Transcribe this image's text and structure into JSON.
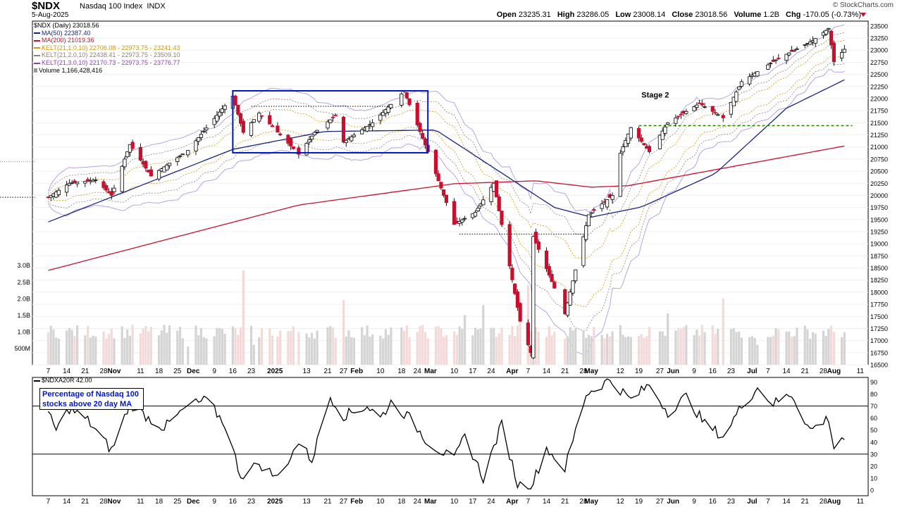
{
  "header": {
    "ticker": "$NDX",
    "name": "Nasdaq 100 Index",
    "exchange": "INDX",
    "date": "5-Aug-2025",
    "brand": "© StockCharts.com",
    "quote": [
      {
        "label": "Open",
        "value": "23235.31"
      },
      {
        "label": "High",
        "value": "23286.05"
      },
      {
        "label": "Low",
        "value": "23008.14"
      },
      {
        "label": "Close",
        "value": "23018.56"
      },
      {
        "label": "Volume",
        "value": "1.2B"
      },
      {
        "label": "Chg",
        "value": "-170.05 (-0.73%)"
      }
    ]
  },
  "legend": [
    {
      "text": "$NDX (Daily) 23018.56",
      "color": "#000000",
      "swatch": false
    },
    {
      "text": "MA(50) 22387.40",
      "color": "#1a237e",
      "swatch": true
    },
    {
      "text": "MA(200) 21019.36",
      "color": "#c8102e",
      "swatch": true
    },
    {
      "text": "KELT(21,1.0,10) 22706.08 - 22973.75 - 23241.43",
      "color": "#c99a12",
      "swatch": true
    },
    {
      "text": "KELT(21,2.0,10) 22438.41 - 22973.75 - 23509.10",
      "color": "#8d7f7f",
      "swatch": true
    },
    {
      "text": "KELT(21,3.0,10) 22170.73 - 22973.75 - 23776.77",
      "color": "#8e44ad",
      "swatch": true
    },
    {
      "text": "Volume 1,166,428,416",
      "color": "#000000",
      "swatch": true
    }
  ],
  "annotations": {
    "stage2": "Stage 2",
    "indicator_note_line1": "Percentage of Nasdaq 100",
    "indicator_note_line2": "stocks above 20 day MA"
  },
  "indicator": {
    "legend": "$NDXA20R 42.00"
  },
  "colors": {
    "up": "#ffffff",
    "down": "#c8102e",
    "ma50": "#1a237e",
    "ma200": "#c8102e",
    "kelt1": "#c99a12",
    "kelt2": "#8d7f7f",
    "kelt3": "#b9a3e3",
    "box": "#0015c9",
    "support": "#2e8b00",
    "note_text": "#0015c9"
  },
  "chart_data": [
    {
      "type": "candlestick",
      "title": "$NDX (Daily) 23018.56",
      "ylim": [
        16500,
        23600
      ],
      "y_ticks": [
        16500,
        16750,
        17000,
        17250,
        17500,
        17750,
        18000,
        18250,
        18500,
        18750,
        19000,
        19250,
        19500,
        19750,
        20000,
        20250,
        20500,
        20750,
        21000,
        21250,
        21500,
        21750,
        22000,
        22250,
        22500,
        22750,
        23000,
        23250,
        23500
      ],
      "x_ticks": [
        "7",
        "14",
        "21",
        "28",
        "Nov",
        "11",
        "18",
        "25",
        "Dec",
        "9",
        "16",
        "23",
        "2025",
        "13",
        "21",
        "27",
        "Feb",
        "10",
        "18",
        "24",
        "Mar",
        "10",
        "17",
        "24",
        "Apr",
        "7",
        "14",
        "21",
        "28",
        "May",
        "12",
        "19",
        "27",
        "Jun",
        "9",
        "16",
        "23",
        "Jul",
        "7",
        "14",
        "21",
        "28",
        "Aug",
        "11"
      ],
      "anchors": [
        {
          "date": "2024-10-07",
          "close": 19960
        },
        {
          "date": "2024-10-15",
          "close": 20250
        },
        {
          "date": "2024-10-25",
          "close": 20320
        },
        {
          "date": "2024-10-31",
          "close": 20000
        },
        {
          "date": "2024-11-07",
          "close": 21050
        },
        {
          "date": "2024-11-15",
          "close": 20400
        },
        {
          "date": "2024-11-29",
          "close": 20930
        },
        {
          "date": "2024-12-16",
          "close": 22050
        },
        {
          "date": "2024-12-20",
          "close": 21300
        },
        {
          "date": "2024-12-26",
          "close": 21700
        },
        {
          "date": "2025-01-10",
          "close": 20850
        },
        {
          "date": "2025-01-16",
          "close": 21300
        },
        {
          "date": "2025-01-24",
          "close": 21650
        },
        {
          "date": "2025-01-27",
          "close": 21100
        },
        {
          "date": "2025-02-07",
          "close": 21500
        },
        {
          "date": "2025-02-19",
          "close": 22150
        },
        {
          "date": "2025-02-28",
          "close": 20900
        },
        {
          "date": "2025-03-10",
          "close": 19400
        },
        {
          "date": "2025-03-18",
          "close": 19650
        },
        {
          "date": "2025-03-25",
          "close": 20250
        },
        {
          "date": "2025-04-04",
          "close": 17400
        },
        {
          "date": "2025-04-08",
          "close": 16750
        },
        {
          "date": "2025-04-09",
          "close": 19150
        },
        {
          "date": "2025-04-21",
          "close": 17550
        },
        {
          "date": "2025-04-30",
          "close": 19600
        },
        {
          "date": "2025-05-09",
          "close": 20000
        },
        {
          "date": "2025-05-12",
          "close": 20870
        },
        {
          "date": "2025-05-16",
          "close": 21400
        },
        {
          "date": "2025-05-23",
          "close": 20900
        },
        {
          "date": "2025-05-30",
          "close": 21500
        },
        {
          "date": "2025-06-11",
          "close": 21900
        },
        {
          "date": "2025-06-20",
          "close": 21600
        },
        {
          "date": "2025-06-27",
          "close": 22350
        },
        {
          "date": "2025-07-10",
          "close": 22800
        },
        {
          "date": "2025-07-24",
          "close": 23200
        },
        {
          "date": "2025-07-30",
          "close": 23450
        },
        {
          "date": "2025-08-01",
          "close": 22760
        },
        {
          "date": "2025-08-05",
          "close": 23018.56
        }
      ],
      "ma50": [
        {
          "date": "2024-10-07",
          "value": 19450
        },
        {
          "date": "2024-12-16",
          "value": 20950
        },
        {
          "date": "2025-01-20",
          "value": 21320
        },
        {
          "date": "2025-03-03",
          "value": 21350
        },
        {
          "date": "2025-04-17",
          "value": 19750
        },
        {
          "date": "2025-05-01",
          "value": 19550
        },
        {
          "date": "2025-05-20",
          "value": 19760
        },
        {
          "date": "2025-06-17",
          "value": 20450
        },
        {
          "date": "2025-07-14",
          "value": 21800
        },
        {
          "date": "2025-08-05",
          "value": 22387.4
        }
      ],
      "ma200": [
        {
          "date": "2024-10-07",
          "value": 18450
        },
        {
          "date": "2025-01-10",
          "value": 19800
        },
        {
          "date": "2025-03-10",
          "value": 20240
        },
        {
          "date": "2025-04-10",
          "value": 20300
        },
        {
          "date": "2025-05-01",
          "value": 20170
        },
        {
          "date": "2025-05-15",
          "value": 20200
        },
        {
          "date": "2025-08-05",
          "value": 21019.36
        }
      ],
      "consolidation_box": {
        "from": "2024-12-16",
        "to": "2025-02-28",
        "low": 20880,
        "high": 22160
      },
      "support_line": {
        "from": "2025-05-19",
        "to": "2025-08-08",
        "value": 21440
      },
      "dotted_levels": [
        {
          "from": "2025-03-12",
          "to": "2025-04-29",
          "value": 19200
        },
        {
          "from": "2024-12-23",
          "to": "2025-02-13",
          "value": 21840
        }
      ]
    },
    {
      "type": "bar",
      "title": "Volume 1,166,428,416",
      "y_ticks": [
        "500M",
        "1.0B",
        "1.5B",
        "2.0B",
        "2.5B",
        "3.0B"
      ],
      "ylim_billions": [
        0,
        3.1
      ],
      "baseline_billions": 1.05,
      "spikes": [
        {
          "date": "2024-12-20",
          "value": 2.85
        },
        {
          "date": "2024-11-29",
          "value": 0.55
        },
        {
          "date": "2024-12-24",
          "value": 0.6
        },
        {
          "date": "2025-01-27",
          "value": 1.95
        },
        {
          "date": "2025-03-21",
          "value": 1.8
        },
        {
          "date": "2025-04-04",
          "value": 2.0
        },
        {
          "date": "2025-04-07",
          "value": 2.4
        },
        {
          "date": "2025-04-09",
          "value": 2.6
        },
        {
          "date": "2025-06-20",
          "value": 2.0
        },
        {
          "date": "2025-07-03",
          "value": 0.6
        },
        {
          "date": "2025-05-30",
          "value": 1.55
        },
        {
          "date": "2025-03-14",
          "value": 1.5
        }
      ]
    },
    {
      "type": "line",
      "title": "$NDXA20R 42.00",
      "ylim": [
        0,
        95
      ],
      "y_ticks": [
        0,
        10,
        20,
        30,
        40,
        50,
        60,
        70,
        80,
        90
      ],
      "reference_lines": [
        30,
        70
      ],
      "anchors": [
        {
          "date": "2024-10-07",
          "value": 63
        },
        {
          "date": "2024-10-10",
          "value": 50
        },
        {
          "date": "2024-10-15",
          "value": 68
        },
        {
          "date": "2024-10-22",
          "value": 58
        },
        {
          "date": "2024-10-31",
          "value": 33
        },
        {
          "date": "2024-11-07",
          "value": 72
        },
        {
          "date": "2024-11-14",
          "value": 60
        },
        {
          "date": "2024-11-20",
          "value": 52
        },
        {
          "date": "2024-11-29",
          "value": 70
        },
        {
          "date": "2024-12-06",
          "value": 75
        },
        {
          "date": "2024-12-13",
          "value": 55
        },
        {
          "date": "2024-12-19",
          "value": 12
        },
        {
          "date": "2024-12-26",
          "value": 22
        },
        {
          "date": "2025-01-02",
          "value": 10
        },
        {
          "date": "2025-01-10",
          "value": 40
        },
        {
          "date": "2025-01-15",
          "value": 25
        },
        {
          "date": "2025-01-22",
          "value": 78
        },
        {
          "date": "2025-01-27",
          "value": 62
        },
        {
          "date": "2025-02-05",
          "value": 70
        },
        {
          "date": "2025-02-10",
          "value": 60
        },
        {
          "date": "2025-02-14",
          "value": 73
        },
        {
          "date": "2025-02-21",
          "value": 60
        },
        {
          "date": "2025-02-28",
          "value": 40
        },
        {
          "date": "2025-03-10",
          "value": 25
        },
        {
          "date": "2025-03-14",
          "value": 45
        },
        {
          "date": "2025-03-21",
          "value": 10
        },
        {
          "date": "2025-03-28",
          "value": 55
        },
        {
          "date": "2025-04-03",
          "value": 5
        },
        {
          "date": "2025-04-08",
          "value": 2
        },
        {
          "date": "2025-04-14",
          "value": 35
        },
        {
          "date": "2025-04-21",
          "value": 18
        },
        {
          "date": "2025-04-29",
          "value": 80
        },
        {
          "date": "2025-05-08",
          "value": 92
        },
        {
          "date": "2025-05-16",
          "value": 75
        },
        {
          "date": "2025-05-23",
          "value": 88
        },
        {
          "date": "2025-05-30",
          "value": 65
        },
        {
          "date": "2025-06-06",
          "value": 78
        },
        {
          "date": "2025-06-13",
          "value": 55
        },
        {
          "date": "2025-06-20",
          "value": 45
        },
        {
          "date": "2025-06-27",
          "value": 70
        },
        {
          "date": "2025-07-03",
          "value": 85
        },
        {
          "date": "2025-07-09",
          "value": 72
        },
        {
          "date": "2025-07-16",
          "value": 80
        },
        {
          "date": "2025-07-23",
          "value": 50
        },
        {
          "date": "2025-07-30",
          "value": 60
        },
        {
          "date": "2025-08-01",
          "value": 35
        },
        {
          "date": "2025-08-04",
          "value": 44
        },
        {
          "date": "2025-08-05",
          "value": 42
        }
      ]
    }
  ]
}
